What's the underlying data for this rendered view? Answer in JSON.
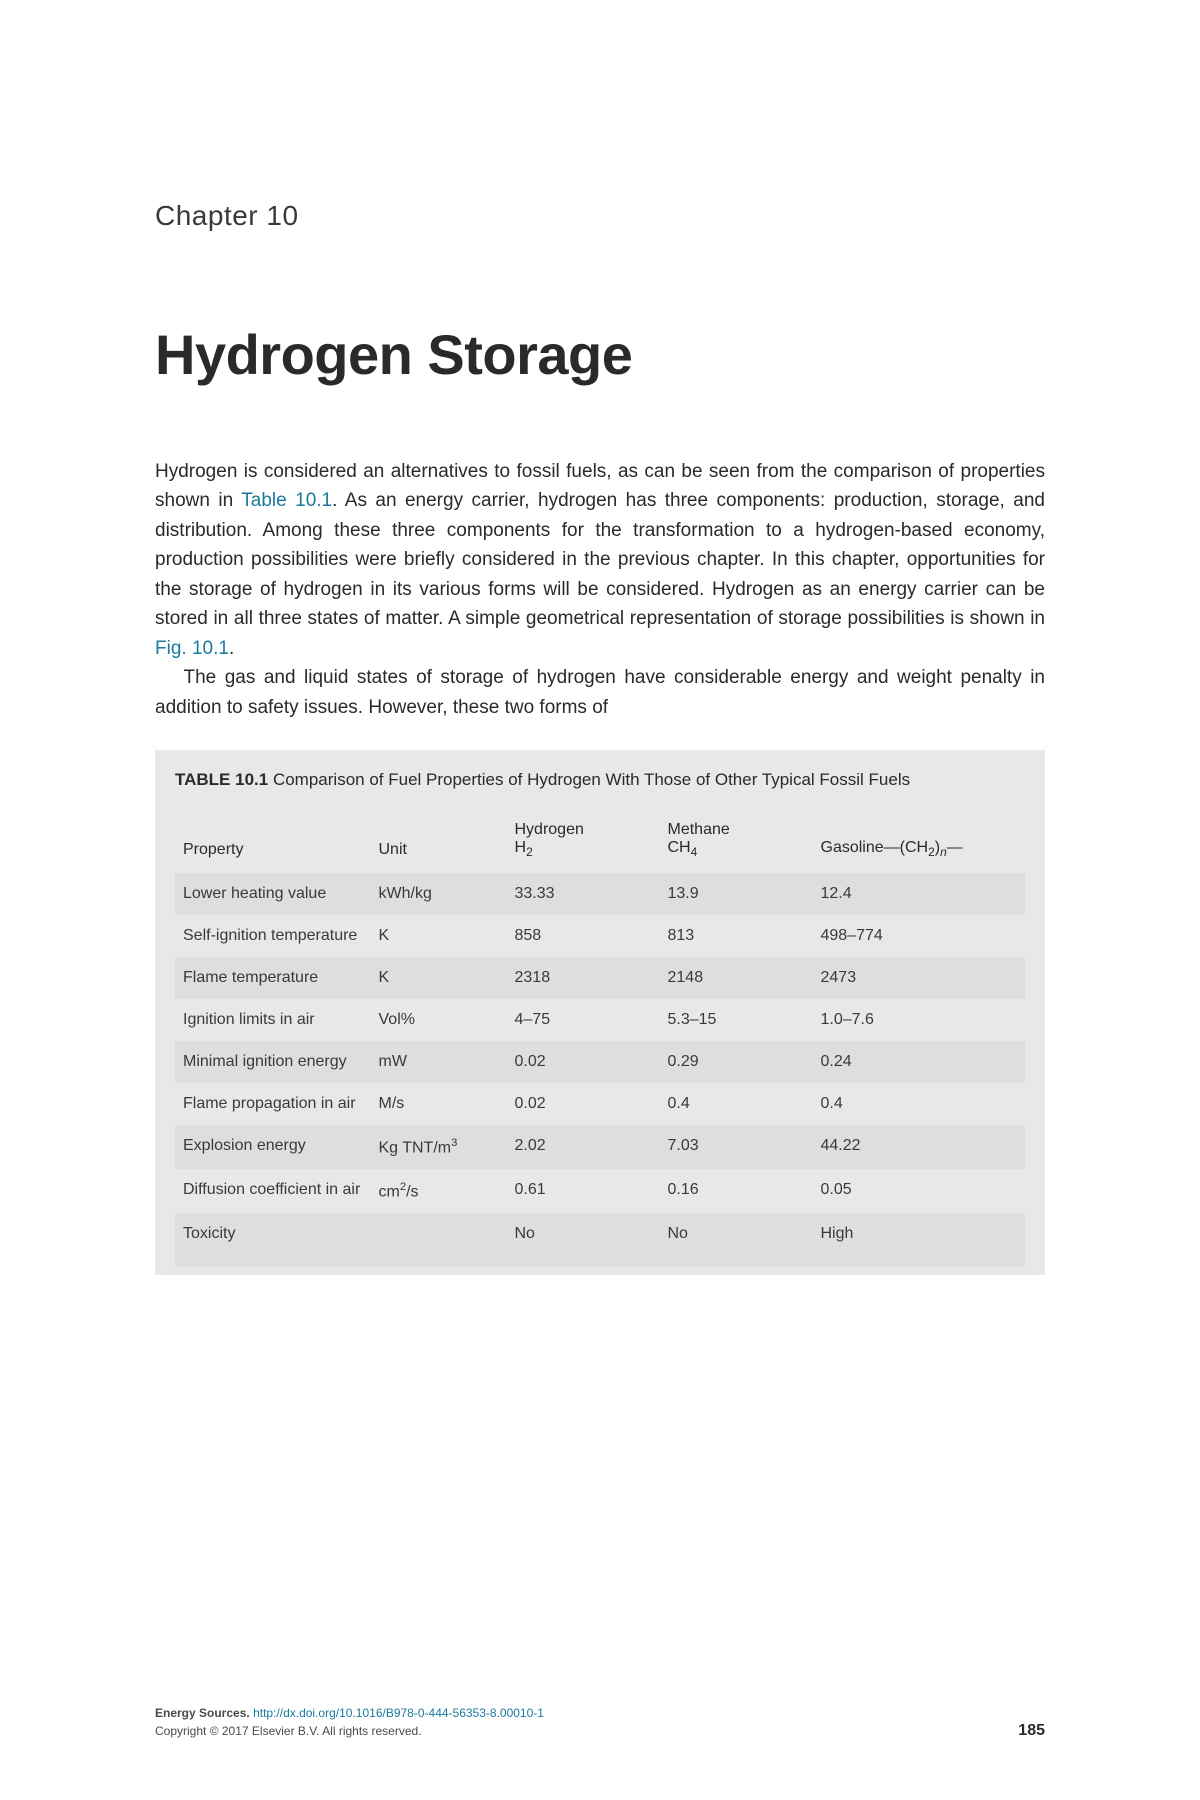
{
  "chapter": {
    "label": "Chapter 10",
    "title": "Hydrogen Storage"
  },
  "paragraphs": {
    "p1_a": "Hydrogen is considered an alternatives to fossil fuels, as can be seen from the comparison of properties shown in ",
    "p1_link1": "Table 10.1",
    "p1_b": ". As an energy carrier, hydrogen has three components: production, storage, and distribution. Among these three components for the transformation to a hydrogen-based economy, production possibilities were briefly considered in the previous chapter. In this chapter, opportunities for the storage of hydrogen in its various forms will be considered. Hydrogen as an energy carrier can be stored in all three states of matter. A simple geometrical representation of storage possibilities is shown in ",
    "p1_link2": "Fig. 10.1",
    "p1_c": ".",
    "p2": "The gas and liquid states of storage of hydrogen have considerable energy and weight penalty in addition to safety issues. However, these two forms of"
  },
  "table": {
    "number": "TABLE 10.1",
    "caption": "Comparison of Fuel Properties of Hydrogen With Those of Other Typical Fossil Fuels",
    "columns": {
      "property": "Property",
      "unit": "Unit",
      "hydrogen_pre": "Hydrogen",
      "hydrogen_formula": "H",
      "hydrogen_sub": "2",
      "methane_pre": "Methane",
      "methane_formula": "CH",
      "methane_sub": "4",
      "gasoline_pre": "Gasoline—(CH",
      "gasoline_sub1": "2",
      "gasoline_mid": ")",
      "gasoline_sub2": "n",
      "gasoline_post": "—"
    },
    "rows": [
      {
        "property": "Lower heating value",
        "unit": "kWh/kg",
        "h2": "33.33",
        "ch4": "13.9",
        "gas": "12.4"
      },
      {
        "property": "Self-ignition temperature",
        "unit": "K",
        "h2": "858",
        "ch4": "813",
        "gas": "498–774"
      },
      {
        "property": "Flame temperature",
        "unit": "K",
        "h2": "2318",
        "ch4": "2148",
        "gas": "2473"
      },
      {
        "property": "Ignition limits in air",
        "unit": "Vol%",
        "h2": "4–75",
        "ch4": "5.3–15",
        "gas": "1.0–7.6"
      },
      {
        "property": "Minimal ignition energy",
        "unit": "mW",
        "h2": "0.02",
        "ch4": "0.29",
        "gas": "0.24"
      },
      {
        "property": "Flame propagation in air",
        "unit": "M/s",
        "h2": "0.02",
        "ch4": "0.4",
        "gas": "0.4"
      },
      {
        "property": "Explosion energy",
        "unit_pre": "Kg TNT/m",
        "unit_sup": "3",
        "h2": "2.02",
        "ch4": "7.03",
        "gas": "44.22"
      },
      {
        "property": "Diffusion coefficient in air",
        "unit_pre": "cm",
        "unit_sup": "2",
        "unit_post": "/s",
        "h2": "0.61",
        "ch4": "0.16",
        "gas": "0.05"
      },
      {
        "property": "Toxicity",
        "unit": "",
        "h2": "No",
        "ch4": "No",
        "gas": "High"
      }
    ]
  },
  "footer": {
    "source_label": "Energy Sources.",
    "doi": "http://dx.doi.org/10.1016/B978-0-444-56353-8.00010-1",
    "copyright": "Copyright © 2017 Elsevier B.V. All rights reserved.",
    "page_number": "185"
  },
  "styling": {
    "background_color": "#ffffff",
    "text_color": "#2a2a2a",
    "link_color": "#1a7a9e",
    "table_bg": "#e6e8e9",
    "table_row_alt": "#dcdedf",
    "chapter_label_fontsize": 28,
    "chapter_title_fontsize": 56,
    "body_fontsize": 19,
    "table_fontsize": 16,
    "footer_fontsize": 12
  }
}
